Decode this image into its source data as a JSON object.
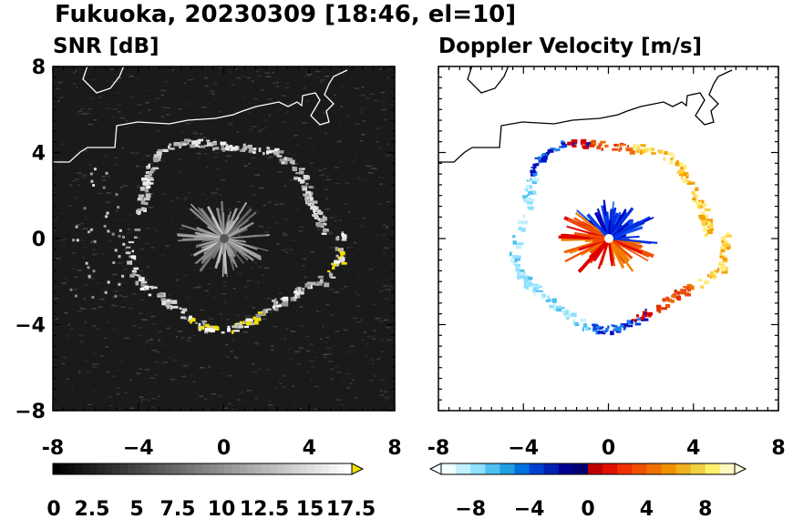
{
  "figure_title": "Fukuoka, 20230309 [18:46, el=10]",
  "colors": {
    "snr_background": "#1a1a1a",
    "coastline": "#000000",
    "snr_coastline": "#ffffff",
    "accent_yellow": "#f0e000"
  },
  "chart_data": [
    {
      "type": "heatmap",
      "title": "SNR [dB]",
      "xlim": [
        -8,
        8
      ],
      "ylim": [
        -8,
        8
      ],
      "xticks": [
        "-8",
        "−4",
        "0",
        "4",
        "8"
      ],
      "yticks": [
        "8",
        "4",
        "0",
        "−4",
        "−8"
      ],
      "colorbar": {
        "labels": [
          "0",
          "2.5",
          "5",
          "7.5",
          "10",
          "12.5",
          "15",
          "17.5"
        ],
        "range": [
          0,
          20
        ],
        "extend": "max",
        "colors": [
          "#000000",
          "#ffffff",
          "#f0e000"
        ]
      }
    },
    {
      "type": "heatmap",
      "title": "Doppler Velocity [m/s]",
      "xlim": [
        -8,
        8
      ],
      "ylim": [
        -8,
        8
      ],
      "xticks": [
        "-8",
        "−4",
        "0",
        "4",
        "8"
      ],
      "yticks": [],
      "colorbar": {
        "labels": [
          "−8",
          "−4",
          "0",
          "4",
          "8"
        ],
        "range": [
          -10,
          10
        ],
        "extend": "both",
        "colors": [
          "#e8ffff",
          "#00a0e0",
          "#0000c0",
          "#e00000",
          "#f08000",
          "#fff0a0"
        ]
      }
    }
  ]
}
